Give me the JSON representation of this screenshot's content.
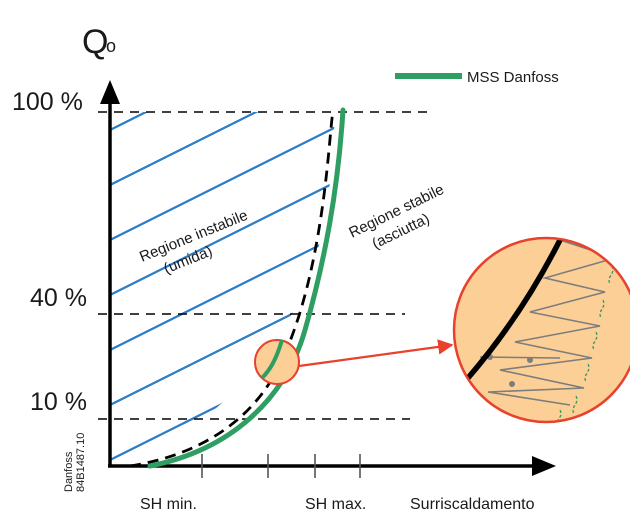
{
  "axis": {
    "y_title_main": "Q",
    "y_title_sub": "o",
    "x_title": "Surriscaldamento",
    "y_ticks": [
      "100 %",
      "40 %",
      "10 %"
    ],
    "x_ticks": [
      "SH min.",
      "SH max."
    ]
  },
  "legend": {
    "label": "MSS Danfoss",
    "color": "#2e9e63"
  },
  "regions": {
    "unstable_line1": "Regione instabile",
    "unstable_line2": "(umida)",
    "stable_line1": "Regione stabile",
    "stable_line2": "(asciutta)"
  },
  "watermark": {
    "line1": "Danfoss",
    "line2": "84B1487.10"
  },
  "colors": {
    "hatch": "#2a7cc7",
    "mss_curve": "#2e9e63",
    "zoom_fill": "#fbcf96",
    "zoom_border": "#e8412c",
    "arrow": "#e8412c",
    "axis": "#000000"
  }
}
